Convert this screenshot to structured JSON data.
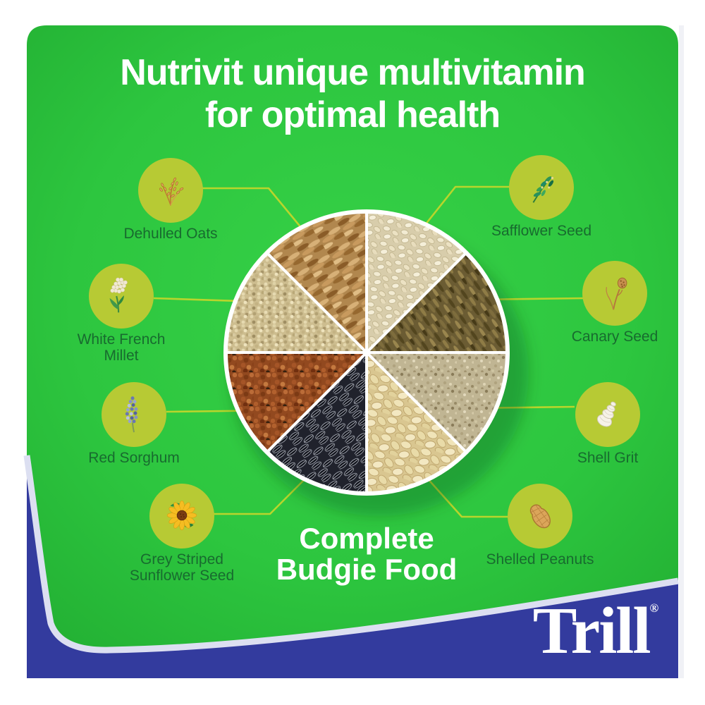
{
  "headline": {
    "text": "Nutrivit unique multivitamin\nfor optimal health"
  },
  "tagline": {
    "text": "Complete\nBudgie Food"
  },
  "brand": {
    "name": "Trill",
    "registered": "®"
  },
  "ingredients": [
    {
      "id": "dehulled-oats",
      "label": "Dehulled Oats",
      "icon": "oat-sprig-icon"
    },
    {
      "id": "safflower-seed",
      "label": "Safflower Seed",
      "icon": "safflower-sprig-icon"
    },
    {
      "id": "white-french-millet",
      "label": "White French\nMillet",
      "icon": "millet-panicle-icon"
    },
    {
      "id": "canary-seed",
      "label": "Canary Seed",
      "icon": "canary-grass-icon"
    },
    {
      "id": "red-sorghum",
      "label": "Red Sorghum",
      "icon": "sorghum-head-icon"
    },
    {
      "id": "shell-grit",
      "label": "Shell Grit",
      "icon": "spiral-shell-icon"
    },
    {
      "id": "grey-striped-sunflower-seed",
      "label": "Grey Striped\nSunflower Seed",
      "icon": "sunflower-icon"
    },
    {
      "id": "shelled-peanuts",
      "label": "Shelled Peanuts",
      "icon": "peanut-icon"
    }
  ],
  "wheel": {
    "type": "ingredient-wheel",
    "equal_segments": true,
    "segments": [
      {
        "key": "safflower",
        "label": "Safflower Seed"
      },
      {
        "key": "canary",
        "label": "Canary Seed"
      },
      {
        "key": "shellgrit",
        "label": "Shell Grit"
      },
      {
        "key": "peanuts",
        "label": "Shelled Peanuts"
      },
      {
        "key": "sunflower",
        "label": "Grey Striped Sunflower Seed"
      },
      {
        "key": "sorghum",
        "label": "Red Sorghum"
      },
      {
        "key": "millet",
        "label": "White French Millet"
      },
      {
        "key": "oats",
        "label": "Dehulled Oats"
      }
    ]
  },
  "colors": {
    "panel_green": "#2bc13d",
    "band_blue": "#333b9e",
    "bubble_green": "#b7ca34",
    "connector_lime": "#b9d52c",
    "label_green": "#186b2f",
    "text_white": "#ffffff",
    "border_lavender": "#dcdff1"
  }
}
